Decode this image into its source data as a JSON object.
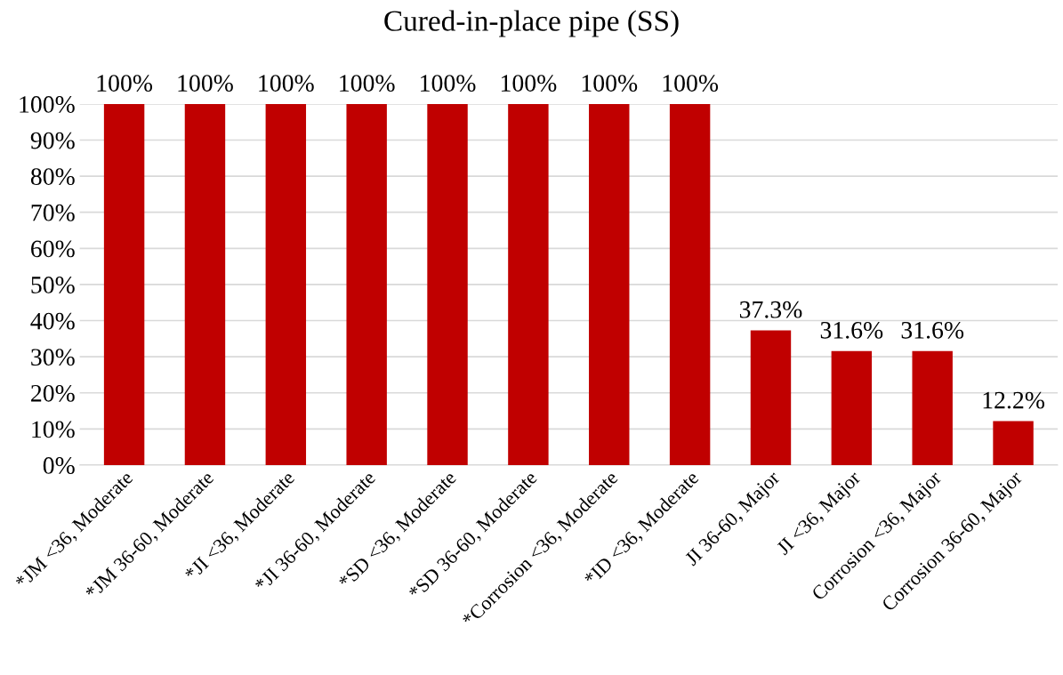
{
  "chart_data": {
    "type": "bar",
    "title": "Cured-in-place pipe (SS)",
    "categories": [
      "*JM <36, Moderate",
      "*JM 36-60, Moderate",
      "*JI <36, Moderate",
      "*JI 36-60, Moderate",
      "*SD <36, Moderate",
      "*SD 36-60, Moderate",
      "*Corrosion <36, Moderate",
      "*ID <36, Moderate",
      "JI 36-60, Major",
      "JI <36, Major",
      "Corrosion <36, Major",
      "Corrosion 36-60, Major"
    ],
    "values": [
      100,
      100,
      100,
      100,
      100,
      100,
      100,
      100,
      37.3,
      31.6,
      31.6,
      12.2
    ],
    "value_labels": [
      "100%",
      "100%",
      "100%",
      "100%",
      "100%",
      "100%",
      "100%",
      "100%",
      "37.3%",
      "31.6%",
      "31.6%",
      "12.2%"
    ],
    "color": "#c00000",
    "ylim": [
      0,
      100
    ],
    "yticks": [
      {
        "value": 0,
        "label": "0%"
      },
      {
        "value": 10,
        "label": "10%"
      },
      {
        "value": 20,
        "label": "20%"
      },
      {
        "value": 30,
        "label": "30%"
      },
      {
        "value": 40,
        "label": "40%"
      },
      {
        "value": 50,
        "label": "50%"
      },
      {
        "value": 60,
        "label": "60%"
      },
      {
        "value": 70,
        "label": "70%"
      },
      {
        "value": 80,
        "label": "80%"
      },
      {
        "value": 90,
        "label": "90%"
      },
      {
        "value": 100,
        "label": "100%"
      }
    ],
    "grid": "y"
  }
}
